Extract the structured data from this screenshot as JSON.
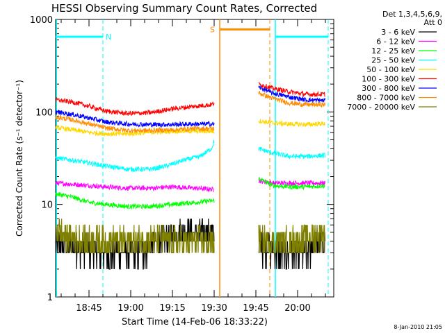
{
  "chart_data": {
    "type": "line",
    "title": "HESSI Observing Summary Count Rates, Corrected",
    "xlabel": "Start Time (14-Feb-06 18:33:22)",
    "ylabel": "Corrected Count Rate (s⁻¹ detector⁻¹)",
    "x_range_minutes_after_1833": [
      0,
      100
    ],
    "x_ticks": [
      {
        "label": "18:45",
        "min": 12
      },
      {
        "label": "19:00",
        "min": 27
      },
      {
        "label": "19:15",
        "min": 42
      },
      {
        "label": "19:30",
        "min": 57
      },
      {
        "label": "19:45",
        "min": 72
      },
      {
        "label": "20:00",
        "min": 87
      }
    ],
    "y_scale": "log",
    "y_range": [
      1,
      1000
    ],
    "y_tick_labels": [
      "1",
      "10",
      "100",
      "1000"
    ],
    "legend_header": [
      "Det 1,3,4,5,6,9,",
      "Att 0"
    ],
    "legend_position": "right",
    "series": [
      {
        "name": "3 - 6 keV",
        "color": "#000000",
        "seg1": [
          [
            0,
            3.8
          ],
          [
            4,
            3.7
          ],
          [
            8,
            3.5
          ],
          [
            12,
            3.2
          ],
          [
            15,
            3.0
          ],
          [
            20,
            3.0
          ],
          [
            27,
            3.0
          ],
          [
            30,
            3.0
          ],
          [
            34,
            3.5
          ],
          [
            40,
            4.5
          ],
          [
            46,
            5.0
          ],
          [
            52,
            4.8
          ],
          [
            57,
            4.8
          ]
        ],
        "seg2": [
          [
            73,
            3.5
          ],
          [
            76,
            3.5
          ],
          [
            80,
            3.0
          ],
          [
            86,
            3.0
          ],
          [
            90,
            3.0
          ],
          [
            94,
            3.8
          ],
          [
            97,
            4.0
          ]
        ]
      },
      {
        "name": "6 - 12 keV",
        "color": "#ff00ff",
        "seg1": [
          [
            0,
            17
          ],
          [
            6,
            16.5
          ],
          [
            12,
            16
          ],
          [
            18,
            15.5
          ],
          [
            26,
            15
          ],
          [
            34,
            15
          ],
          [
            42,
            15.5
          ],
          [
            50,
            15
          ],
          [
            57,
            14.5
          ]
        ],
        "seg2": [
          [
            73,
            18
          ],
          [
            78,
            17
          ],
          [
            84,
            17
          ],
          [
            90,
            17
          ],
          [
            97,
            17
          ]
        ]
      },
      {
        "name": "12 - 25 keV",
        "color": "#00ff00",
        "seg1": [
          [
            0,
            13
          ],
          [
            6,
            12
          ],
          [
            12,
            10.5
          ],
          [
            18,
            10
          ],
          [
            26,
            9.5
          ],
          [
            34,
            9.5
          ],
          [
            42,
            10
          ],
          [
            50,
            10.5
          ],
          [
            57,
            11
          ]
        ],
        "seg2": [
          [
            73,
            19
          ],
          [
            78,
            16
          ],
          [
            84,
            15.5
          ],
          [
            90,
            15.5
          ],
          [
            97,
            16
          ]
        ]
      },
      {
        "name": "25 - 50 keV",
        "color": "#00ffff",
        "seg1": [
          [
            0,
            32
          ],
          [
            6,
            30
          ],
          [
            12,
            28
          ],
          [
            18,
            26
          ],
          [
            26,
            24
          ],
          [
            34,
            24
          ],
          [
            40,
            26
          ],
          [
            46,
            30
          ],
          [
            52,
            33
          ],
          [
            56,
            40
          ],
          [
            57,
            48
          ]
        ],
        "seg2": [
          [
            73,
            40
          ],
          [
            78,
            36
          ],
          [
            84,
            33
          ],
          [
            90,
            33
          ],
          [
            97,
            34
          ]
        ]
      },
      {
        "name": "50 - 100 keV",
        "color": "#ffd700",
        "seg1": [
          [
            0,
            68
          ],
          [
            6,
            64
          ],
          [
            12,
            60
          ],
          [
            18,
            58
          ],
          [
            26,
            58
          ],
          [
            34,
            60
          ],
          [
            42,
            62
          ],
          [
            50,
            62
          ],
          [
            57,
            62
          ]
        ],
        "seg2": [
          [
            73,
            80
          ],
          [
            78,
            76
          ],
          [
            84,
            74
          ],
          [
            90,
            73
          ],
          [
            97,
            75
          ]
        ]
      },
      {
        "name": "100 - 300 keV",
        "color": "#ff0000",
        "seg1": [
          [
            0,
            135
          ],
          [
            6,
            128
          ],
          [
            12,
            115
          ],
          [
            18,
            102
          ],
          [
            26,
            96
          ],
          [
            34,
            98
          ],
          [
            42,
            108
          ],
          [
            50,
            115
          ],
          [
            56,
            120
          ],
          [
            57,
            125
          ]
        ],
        "seg2": [
          [
            73,
            200
          ],
          [
            78,
            180
          ],
          [
            84,
            165
          ],
          [
            90,
            155
          ],
          [
            97,
            155
          ]
        ]
      },
      {
        "name": "300 - 800 keV",
        "color": "#0000ff",
        "seg1": [
          [
            0,
            100
          ],
          [
            6,
            94
          ],
          [
            12,
            86
          ],
          [
            18,
            78
          ],
          [
            26,
            74
          ],
          [
            34,
            73
          ],
          [
            42,
            73
          ],
          [
            50,
            74
          ],
          [
            57,
            74
          ]
        ],
        "seg2": [
          [
            73,
            185
          ],
          [
            78,
            160
          ],
          [
            84,
            145
          ],
          [
            90,
            135
          ],
          [
            97,
            133
          ]
        ]
      },
      {
        "name": "800 - 7000 keV",
        "color": "#ff8c00",
        "seg1": [
          [
            0,
            88
          ],
          [
            6,
            82
          ],
          [
            12,
            74
          ],
          [
            18,
            67
          ],
          [
            26,
            63
          ],
          [
            34,
            63
          ],
          [
            42,
            64
          ],
          [
            50,
            66
          ],
          [
            57,
            66
          ]
        ],
        "seg2": [
          [
            73,
            160
          ],
          [
            78,
            140
          ],
          [
            84,
            125
          ],
          [
            90,
            120
          ],
          [
            97,
            120
          ]
        ]
      },
      {
        "name": "7000 - 20000 keV",
        "color": "#808000",
        "seg1": [
          [
            0,
            5.2
          ],
          [
            4,
            4.5
          ],
          [
            8,
            4.2
          ],
          [
            12,
            4.0
          ],
          [
            18,
            4.0
          ],
          [
            26,
            4.0
          ],
          [
            34,
            4.2
          ],
          [
            42,
            4.0
          ],
          [
            50,
            4.0
          ],
          [
            57,
            4.0
          ]
        ],
        "seg2": [
          [
            73,
            4.2
          ],
          [
            78,
            4.0
          ],
          [
            84,
            4.0
          ],
          [
            90,
            4.2
          ],
          [
            97,
            4.8
          ]
        ]
      }
    ],
    "annotations": [
      {
        "text": "N",
        "color": "#00ffff",
        "x_start": 0,
        "x_end": 17,
        "y": 650,
        "dashed_min": 17
      },
      {
        "text": "S",
        "color": "#ff8c00",
        "x_start": 59,
        "x_end": 77,
        "y": 780,
        "dashed_min": 77
      },
      {
        "color": "#00ffff",
        "x_start": 79,
        "x_end": 98,
        "y": 650,
        "dashed_min": 98
      }
    ],
    "vertical_lines": [
      {
        "min": 0.3,
        "color": "#00ffff",
        "style": "solid"
      },
      {
        "min": 59,
        "color": "#ff8c00",
        "style": "solid"
      },
      {
        "min": 79,
        "color": "#00ffff",
        "style": "solid"
      }
    ],
    "grid": false
  },
  "footer_timestamp": "8-Jan-2010 21:05"
}
